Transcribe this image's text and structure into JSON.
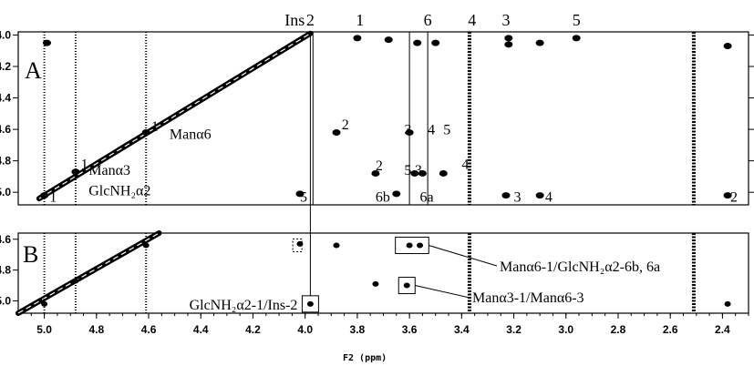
{
  "chart_data": [
    {
      "panel_label": "A",
      "type": "scatter",
      "xlabel": "F2 (ppm)",
      "xlim": [
        5.1,
        2.3
      ],
      "ylim": [
        3.98,
        5.08
      ],
      "y_ticks": [
        4.0,
        4.2,
        4.4,
        4.6,
        4.8,
        5.0
      ],
      "y_tick_labels": [
        "4.0",
        "4.2",
        "4.4",
        "4.6",
        "4.8",
        "5.0"
      ],
      "top_labels": [
        {
          "text": "Ins",
          "x": 4.04
        },
        {
          "text": "2",
          "x": 3.98
        },
        {
          "text": "1",
          "x": 3.79
        },
        {
          "text": "6",
          "x": 3.53
        },
        {
          "text": "4",
          "x": 3.36
        },
        {
          "text": "3",
          "x": 3.23
        },
        {
          "text": "5",
          "x": 2.96
        }
      ],
      "annotations": [
        {
          "text": "1",
          "x": 4.59,
          "y": 4.61
        },
        {
          "text": "Manα6",
          "x": 4.52,
          "y": 4.66
        },
        {
          "text": "1",
          "x": 4.86,
          "y": 4.85
        },
        {
          "text": "Manα3",
          "x": 4.83,
          "y": 4.89
        },
        {
          "text": "GlcNH₂α2",
          "x": 4.83,
          "y": 5.02
        },
        {
          "text": "1",
          "x": 4.98,
          "y": 5.06
        },
        {
          "text": "2",
          "x": 3.86,
          "y": 4.6
        },
        {
          "text": "3",
          "x": 3.62,
          "y": 4.63
        },
        {
          "text": "4",
          "x": 3.53,
          "y": 4.63
        },
        {
          "text": "5",
          "x": 3.47,
          "y": 4.63
        },
        {
          "text": "2",
          "x": 3.73,
          "y": 4.86
        },
        {
          "text": "4",
          "x": 3.4,
          "y": 4.85
        },
        {
          "text": "5",
          "x": 3.62,
          "y": 4.89
        },
        {
          "text": "3",
          "x": 3.58,
          "y": 4.89
        },
        {
          "text": "6b",
          "x": 3.73,
          "y": 5.06
        },
        {
          "text": "6a",
          "x": 3.56,
          "y": 5.06
        },
        {
          "text": "5",
          "x": 4.02,
          "y": 5.06
        },
        {
          "text": "3",
          "x": 3.2,
          "y": 5.06
        },
        {
          "text": "4",
          "x": 3.08,
          "y": 5.06
        },
        {
          "text": "2",
          "x": 2.37,
          "y": 5.06
        }
      ],
      "peaks": [
        {
          "x": 5.0,
          "y": 5.02
        },
        {
          "x": 4.88,
          "y": 4.87
        },
        {
          "x": 4.61,
          "y": 4.62
        },
        {
          "x": 3.88,
          "y": 4.62
        },
        {
          "x": 3.73,
          "y": 4.88
        },
        {
          "x": 3.6,
          "y": 4.62
        },
        {
          "x": 4.99,
          "y": 4.05
        },
        {
          "x": 3.8,
          "y": 4.02
        },
        {
          "x": 3.68,
          "y": 4.03
        },
        {
          "x": 3.57,
          "y": 4.05
        },
        {
          "x": 3.5,
          "y": 4.05
        },
        {
          "x": 3.22,
          "y": 4.02
        },
        {
          "x": 3.22,
          "y": 4.06
        },
        {
          "x": 3.1,
          "y": 4.05
        },
        {
          "x": 2.96,
          "y": 4.02
        },
        {
          "x": 2.38,
          "y": 4.07
        },
        {
          "x": 3.23,
          "y": 5.02
        },
        {
          "x": 3.1,
          "y": 5.02
        },
        {
          "x": 2.38,
          "y": 5.02
        },
        {
          "x": 4.02,
          "y": 5.01
        },
        {
          "x": 3.65,
          "y": 5.01
        },
        {
          "x": 3.58,
          "y": 4.88
        },
        {
          "x": 3.55,
          "y": 4.88
        },
        {
          "x": 3.47,
          "y": 4.88
        }
      ],
      "vertical_lines": [
        3.97,
        3.6,
        3.53,
        3.37,
        2.51
      ]
    },
    {
      "panel_label": "B",
      "type": "scatter",
      "xlabel": "F2 (ppm)",
      "xlim": [
        5.1,
        2.3
      ],
      "ylim": [
        4.56,
        5.08
      ],
      "y_ticks": [
        4.6,
        4.8,
        5.0
      ],
      "y_tick_labels": [
        "4.6",
        "4.8",
        "5.0"
      ],
      "x_ticks": [
        5.0,
        4.8,
        4.6,
        4.4,
        4.2,
        4.0,
        3.8,
        3.6,
        3.4,
        3.2,
        3.0,
        2.8,
        2.6,
        2.4
      ],
      "x_tick_labels": [
        "5.0",
        "4.8",
        "4.6",
        "4.4",
        "4.2",
        "4.0",
        "3.8",
        "3.6",
        "3.4",
        "3.2",
        "3.0",
        "2.8",
        "2.6",
        "2.4"
      ],
      "peaks": [
        {
          "x": 5.0,
          "y": 5.02
        },
        {
          "x": 4.88,
          "y": 4.87
        },
        {
          "x": 4.61,
          "y": 4.64
        },
        {
          "x": 3.98,
          "y": 5.02
        },
        {
          "x": 3.88,
          "y": 4.64
        },
        {
          "x": 3.73,
          "y": 4.89
        },
        {
          "x": 3.61,
          "y": 4.9
        },
        {
          "x": 3.6,
          "y": 4.64
        },
        {
          "x": 3.56,
          "y": 4.64
        },
        {
          "x": 4.02,
          "y": 4.63
        },
        {
          "x": 2.38,
          "y": 5.02
        }
      ],
      "boxed_peaks": [
        {
          "x": 3.98,
          "y": 5.02,
          "label": "GlcNH₂α2-1/Ins-2"
        },
        {
          "x": 3.58,
          "y": 4.64,
          "label": "Manα6-1/GlcNH₂α2-6b, 6a"
        },
        {
          "x": 3.61,
          "y": 4.9,
          "label": "Manα3-1/Manα6-3"
        }
      ],
      "dashed_box": {
        "x": 4.03,
        "y": 4.64
      },
      "vertical_lines": [
        3.37,
        2.51
      ]
    }
  ]
}
